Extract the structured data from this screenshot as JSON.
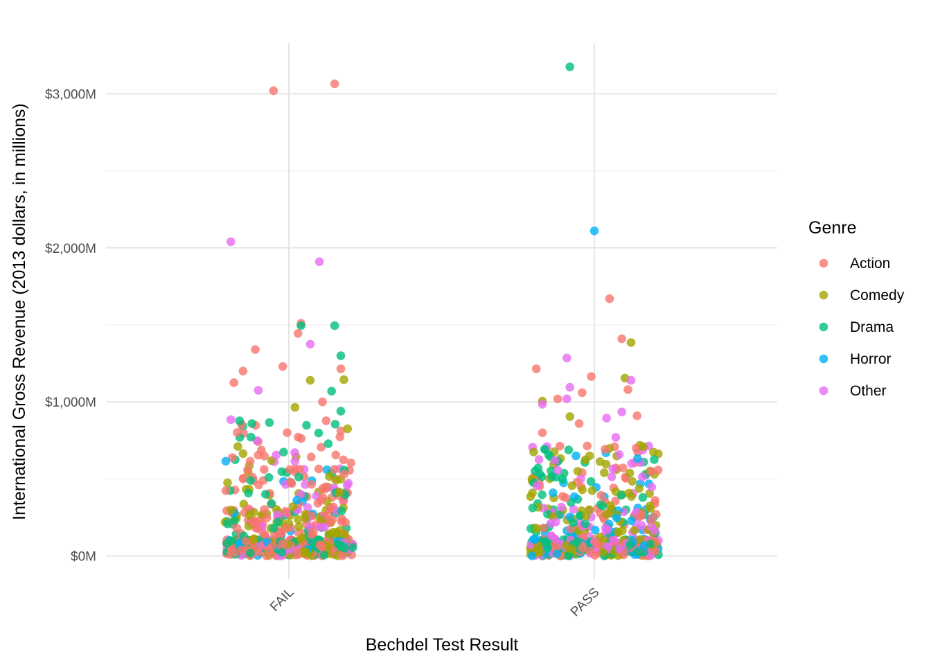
{
  "chart_data": {
    "type": "scatter",
    "xlabel": "Bechdel Test Result",
    "ylabel": "International Gross Revenue (2013 dollars, in millions)",
    "categories": [
      "FAIL",
      "PASS"
    ],
    "y_ticks": [
      0,
      1000,
      2000,
      3000
    ],
    "y_tick_labels": [
      "$0M",
      "$1,000M",
      "$2,000M",
      "$3,000M"
    ],
    "ylim": [
      -150,
      3330
    ],
    "grid": true,
    "jitter": "horizontal",
    "legend": {
      "title": "Genre",
      "placement": "right",
      "entries": [
        "Action",
        "Comedy",
        "Drama",
        "Horror",
        "Other"
      ]
    },
    "colors": {
      "Action": "#F8766D",
      "Comedy": "#A3A500",
      "Drama": "#00BF7D",
      "Horror": "#00B0F6",
      "Other": "#E76BF3"
    },
    "notable_points": [
      {
        "category": "FAIL",
        "jitter": -0.05,
        "y": 3020,
        "genre": "Action"
      },
      {
        "category": "FAIL",
        "jitter": 0.15,
        "y": 3065,
        "genre": "Action"
      },
      {
        "category": "FAIL",
        "jitter": -0.19,
        "y": 2040,
        "genre": "Other"
      },
      {
        "category": "FAIL",
        "jitter": 0.1,
        "y": 1910,
        "genre": "Other"
      },
      {
        "category": "FAIL",
        "jitter": 0.04,
        "y": 1510,
        "genre": "Action"
      },
      {
        "category": "FAIL",
        "jitter": 0.04,
        "y": 1495,
        "genre": "Drama"
      },
      {
        "category": "FAIL",
        "jitter": 0.15,
        "y": 1495,
        "genre": "Drama"
      },
      {
        "category": "FAIL",
        "jitter": 0.03,
        "y": 1445,
        "genre": "Action"
      },
      {
        "category": "FAIL",
        "jitter": 0.07,
        "y": 1375,
        "genre": "Other"
      },
      {
        "category": "FAIL",
        "jitter": -0.11,
        "y": 1340,
        "genre": "Action"
      },
      {
        "category": "FAIL",
        "jitter": 0.17,
        "y": 1300,
        "genre": "Drama"
      },
      {
        "category": "FAIL",
        "jitter": -0.02,
        "y": 1230,
        "genre": "Action"
      },
      {
        "category": "FAIL",
        "jitter": 0.17,
        "y": 1215,
        "genre": "Action"
      },
      {
        "category": "FAIL",
        "jitter": -0.15,
        "y": 1200,
        "genre": "Action"
      },
      {
        "category": "FAIL",
        "jitter": 0.18,
        "y": 1145,
        "genre": "Comedy"
      },
      {
        "category": "FAIL",
        "jitter": 0.07,
        "y": 1140,
        "genre": "Comedy"
      },
      {
        "category": "FAIL",
        "jitter": -0.18,
        "y": 1125,
        "genre": "Action"
      },
      {
        "category": "FAIL",
        "jitter": -0.1,
        "y": 1075,
        "genre": "Other"
      },
      {
        "category": "FAIL",
        "jitter": 0.14,
        "y": 1070,
        "genre": "Drama"
      },
      {
        "category": "FAIL",
        "jitter": 0.11,
        "y": 1000,
        "genre": "Action"
      },
      {
        "category": "FAIL",
        "jitter": 0.02,
        "y": 965,
        "genre": "Comedy"
      },
      {
        "category": "FAIL",
        "jitter": 0.17,
        "y": 940,
        "genre": "Drama"
      },
      {
        "category": "FAIL",
        "jitter": -0.19,
        "y": 885,
        "genre": "Other"
      },
      {
        "category": "PASS",
        "jitter": -0.08,
        "y": 3175,
        "genre": "Drama"
      },
      {
        "category": "PASS",
        "jitter": 0.0,
        "y": 2110,
        "genre": "Horror"
      },
      {
        "category": "PASS",
        "jitter": 0.05,
        "y": 1670,
        "genre": "Action"
      },
      {
        "category": "PASS",
        "jitter": 0.09,
        "y": 1410,
        "genre": "Action"
      },
      {
        "category": "PASS",
        "jitter": 0.12,
        "y": 1385,
        "genre": "Comedy"
      },
      {
        "category": "PASS",
        "jitter": -0.09,
        "y": 1285,
        "genre": "Other"
      },
      {
        "category": "PASS",
        "jitter": -0.19,
        "y": 1215,
        "genre": "Action"
      },
      {
        "category": "PASS",
        "jitter": -0.01,
        "y": 1165,
        "genre": "Action"
      },
      {
        "category": "PASS",
        "jitter": 0.1,
        "y": 1155,
        "genre": "Comedy"
      },
      {
        "category": "PASS",
        "jitter": 0.12,
        "y": 1140,
        "genre": "Other"
      },
      {
        "category": "PASS",
        "jitter": -0.08,
        "y": 1095,
        "genre": "Other"
      },
      {
        "category": "PASS",
        "jitter": 0.11,
        "y": 1080,
        "genre": "Action"
      },
      {
        "category": "PASS",
        "jitter": -0.04,
        "y": 1060,
        "genre": "Action"
      },
      {
        "category": "PASS",
        "jitter": -0.12,
        "y": 1020,
        "genre": "Action"
      },
      {
        "category": "PASS",
        "jitter": -0.09,
        "y": 1020,
        "genre": "Other"
      },
      {
        "category": "PASS",
        "jitter": -0.17,
        "y": 1005,
        "genre": "Comedy"
      },
      {
        "category": "PASS",
        "jitter": -0.17,
        "y": 985,
        "genre": "Other"
      },
      {
        "category": "PASS",
        "jitter": -0.08,
        "y": 905,
        "genre": "Comedy"
      },
      {
        "category": "PASS",
        "jitter": 0.09,
        "y": 935,
        "genre": "Other"
      },
      {
        "category": "PASS",
        "jitter": 0.14,
        "y": 910,
        "genre": "Action"
      },
      {
        "category": "PASS",
        "jitter": 0.04,
        "y": 895,
        "genre": "Other"
      },
      {
        "category": "PASS",
        "jitter": -0.05,
        "y": 860,
        "genre": "Action"
      },
      {
        "category": "PASS",
        "jitter": -0.17,
        "y": 800,
        "genre": "Action"
      },
      {
        "category": "PASS",
        "jitter": 0.07,
        "y": 770,
        "genre": "Other"
      },
      {
        "category": "PASS",
        "jitter": 0.16,
        "y": 710,
        "genre": "Comedy"
      },
      {
        "category": "PASS",
        "jitter": -0.06,
        "y": 650,
        "genre": "Horror"
      }
    ]
  }
}
